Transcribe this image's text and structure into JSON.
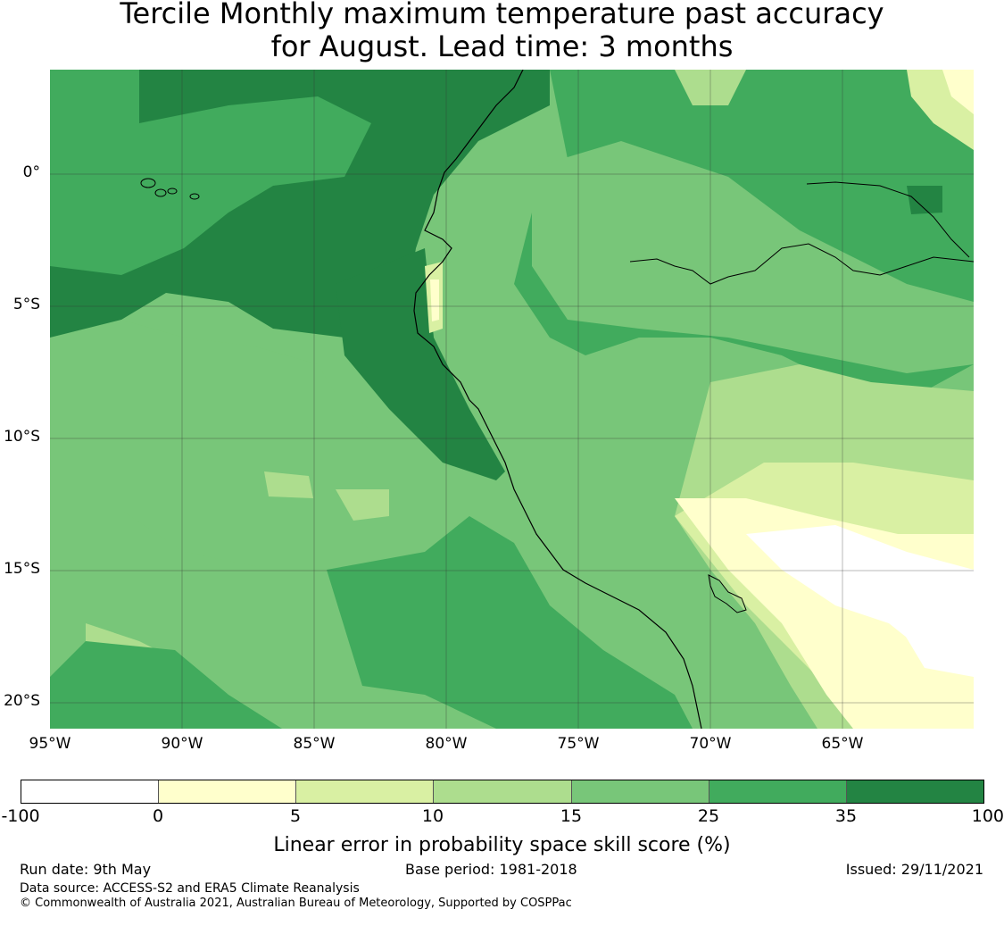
{
  "title": {
    "line1": "Tercile Monthly maximum temperature past accuracy",
    "line2": "for August. Lead time: 3 months"
  },
  "map": {
    "lat_labels": [
      "0°",
      "5°S",
      "10°S",
      "15°S",
      "20°S"
    ],
    "lon_labels": [
      "95°W",
      "90°W",
      "85°W",
      "80°W",
      "75°W",
      "70°W",
      "65°W"
    ]
  },
  "colorbar": {
    "ticks": [
      "-100",
      "0",
      "5",
      "10",
      "15",
      "25",
      "35",
      "100"
    ],
    "colors": [
      "#ffffff",
      "#ffffcc",
      "#d9f0a3",
      "#addd8e",
      "#78c679",
      "#41ab5d",
      "#238443"
    ],
    "label": "Linear error in probability space skill score (%)"
  },
  "footer": {
    "run_date": "Run date: 9th May",
    "base_period": "Base period: 1981-2018",
    "issued": "Issued: 29/11/2021",
    "data_source": "Data source: ACCESS-S2 and ERA5 Climate Reanalysis",
    "copyright": "© Commonwealth of Australia 2021, Australian Bureau of Meteorology, Supported by COSPPac"
  }
}
